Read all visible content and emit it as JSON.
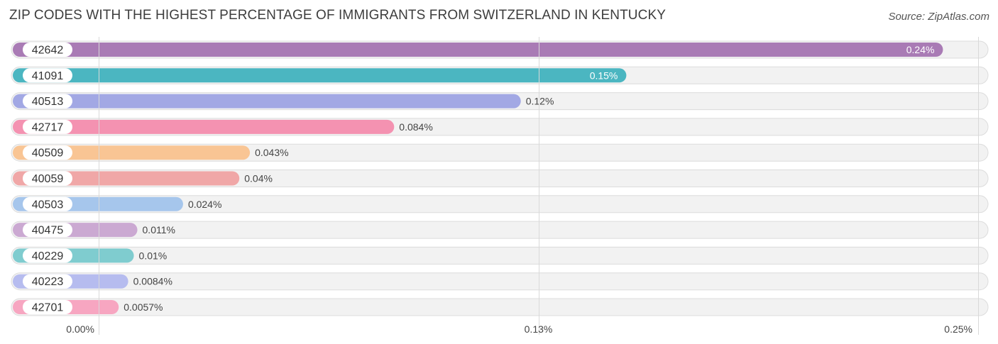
{
  "header": {
    "title": "ZIP CODES WITH THE HIGHEST PERCENTAGE OF IMMIGRANTS FROM SWITZERLAND IN KENTUCKY",
    "source": "Source: ZipAtlas.com"
  },
  "chart_data": {
    "type": "bar",
    "orientation": "horizontal",
    "title": "ZIP CODES WITH THE HIGHEST PERCENTAGE OF IMMIGRANTS FROM SWITZERLAND IN KENTUCKY",
    "categories": [
      "42642",
      "41091",
      "40513",
      "42717",
      "40509",
      "40059",
      "40503",
      "40475",
      "40229",
      "40223",
      "42701"
    ],
    "values": [
      0.24,
      0.15,
      0.12,
      0.084,
      0.043,
      0.04,
      0.024,
      0.011,
      0.01,
      0.0084,
      0.0057
    ],
    "value_labels": [
      "0.24%",
      "0.15%",
      "0.12%",
      "0.084%",
      "0.043%",
      "0.04%",
      "0.024%",
      "0.011%",
      "0.01%",
      "0.0084%",
      "0.0057%"
    ],
    "colors": [
      "#a97bb5",
      "#4bb6c1",
      "#a2a8e4",
      "#f492b1",
      "#f9c594",
      "#f0a7a7",
      "#a6c6ec",
      "#cba9d2",
      "#7fcccf",
      "#b6bcef",
      "#f7a6c1"
    ],
    "xlim": [
      0,
      0.25
    ],
    "x_ticks": [
      0,
      0.125,
      0.25
    ],
    "x_tick_labels": [
      "0.00%",
      "0.13%",
      "0.25%"
    ],
    "grid": true,
    "value_labels_inside": [
      true,
      true,
      false,
      false,
      false,
      false,
      false,
      false,
      false,
      false,
      false
    ]
  }
}
